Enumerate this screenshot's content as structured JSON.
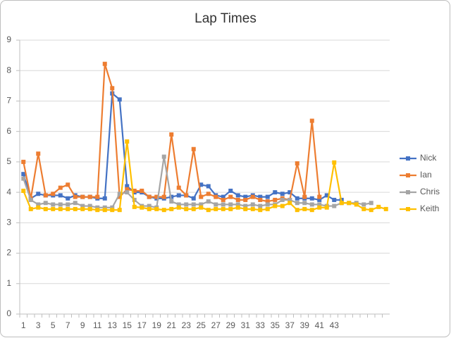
{
  "chart_data": {
    "type": "line",
    "title": "Lap Times",
    "categories": [
      1,
      null,
      3,
      null,
      5,
      null,
      7,
      null,
      9,
      null,
      11,
      null,
      13,
      null,
      15,
      null,
      17,
      null,
      19,
      null,
      21,
      null,
      23,
      null,
      25,
      null,
      27,
      null,
      29,
      null,
      31,
      null,
      33,
      null,
      35,
      null,
      37,
      null,
      39,
      null,
      41,
      null,
      43,
      null,
      null,
      null,
      null,
      null,
      null,
      null
    ],
    "series": [
      {
        "name": "Nick",
        "color": "#4472c4",
        "values": [
          4.6,
          3.8,
          3.95,
          3.9,
          3.9,
          3.9,
          3.8,
          3.9,
          3.85,
          3.85,
          3.8,
          3.8,
          7.25,
          7.05,
          4.2,
          4.0,
          4.0,
          3.85,
          3.8,
          3.8,
          3.85,
          3.9,
          3.9,
          3.8,
          4.25,
          4.2,
          3.9,
          3.85,
          4.05,
          3.9,
          3.85,
          3.9,
          3.85,
          3.85,
          4.0,
          3.95,
          4.0,
          3.8,
          3.8,
          3.8,
          3.75,
          3.9,
          3.75,
          3.75,
          null,
          null,
          null,
          null,
          null,
          null
        ]
      },
      {
        "name": "Ian",
        "color": "#ed7d31",
        "values": [
          5.0,
          3.8,
          5.27,
          3.9,
          3.95,
          4.15,
          4.25,
          3.85,
          3.85,
          3.85,
          3.85,
          8.22,
          7.42,
          3.85,
          4.1,
          4.05,
          4.05,
          3.85,
          3.85,
          3.85,
          5.9,
          4.15,
          3.9,
          5.42,
          3.85,
          3.95,
          3.85,
          3.75,
          3.85,
          3.75,
          3.75,
          3.85,
          3.75,
          3.7,
          3.75,
          3.8,
          3.75,
          4.95,
          3.85,
          6.35,
          3.85,
          null,
          null,
          null,
          null,
          null,
          null,
          null,
          null,
          null
        ]
      },
      {
        "name": "Chris",
        "color": "#a5a5a5",
        "values": [
          4.45,
          3.75,
          3.6,
          3.65,
          3.6,
          3.6,
          3.6,
          3.65,
          3.55,
          3.55,
          3.5,
          3.5,
          3.5,
          3.95,
          4.0,
          3.75,
          3.55,
          3.55,
          3.5,
          5.17,
          3.7,
          3.6,
          3.6,
          3.6,
          3.6,
          3.7,
          3.6,
          3.6,
          3.6,
          3.6,
          3.55,
          3.6,
          3.55,
          3.6,
          3.6,
          3.75,
          3.75,
          3.65,
          3.65,
          3.6,
          3.6,
          3.55,
          3.55,
          3.65,
          3.65,
          3.65,
          3.6,
          3.65,
          null,
          null
        ]
      },
      {
        "name": "Keith",
        "color": "#ffc000",
        "values": [
          4.05,
          3.45,
          3.5,
          3.45,
          3.45,
          3.45,
          3.45,
          3.45,
          3.45,
          3.45,
          3.42,
          3.42,
          3.42,
          3.42,
          5.67,
          3.52,
          3.5,
          3.45,
          3.45,
          3.42,
          3.45,
          3.5,
          3.45,
          3.45,
          3.5,
          3.42,
          3.45,
          3.45,
          3.45,
          3.5,
          3.45,
          3.45,
          3.42,
          3.45,
          3.55,
          3.55,
          3.65,
          3.42,
          3.45,
          3.42,
          3.5,
          3.5,
          4.98,
          3.65,
          3.65,
          3.6,
          3.45,
          3.42,
          3.52,
          3.45
        ]
      }
    ],
    "ylim": [
      0,
      9
    ],
    "yticks": [
      0,
      1,
      2,
      3,
      4,
      5,
      6,
      7,
      8,
      9
    ],
    "grid": true,
    "legend": "right"
  }
}
